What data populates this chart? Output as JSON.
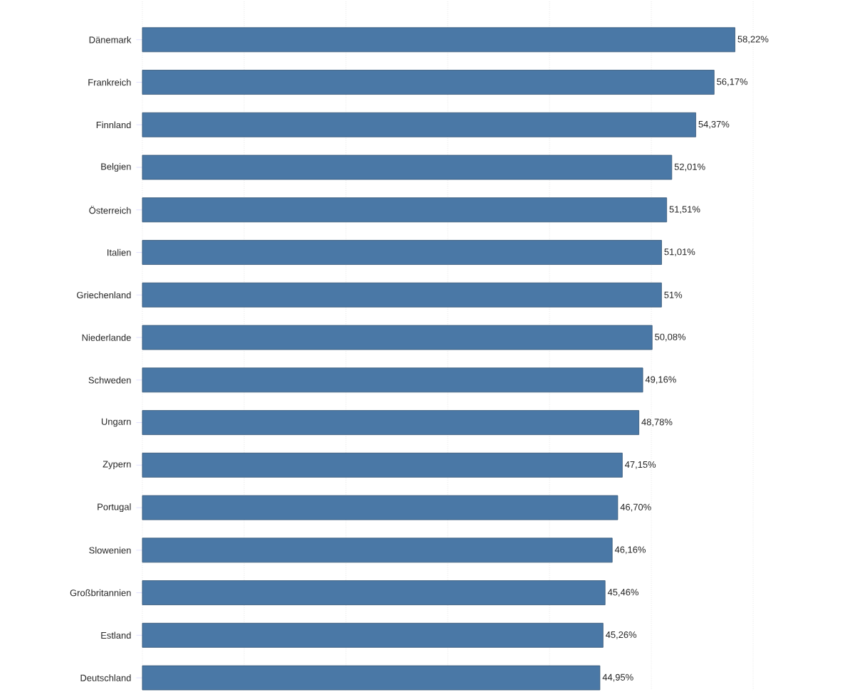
{
  "chart_data": {
    "type": "bar",
    "orientation": "horizontal",
    "categories": [
      "Dänemark",
      "Frankreich",
      "Finnland",
      "Belgien",
      "Österreich",
      "Italien",
      "Griechenland",
      "Niederlande",
      "Schweden",
      "Ungarn",
      "Zypern",
      "Portugal",
      "Slowenien",
      "Großbritannien",
      "Estland",
      "Deutschland"
    ],
    "values": [
      58.22,
      56.17,
      54.37,
      52.01,
      51.51,
      51.01,
      51,
      50.08,
      49.16,
      48.78,
      47.15,
      46.7,
      46.16,
      45.46,
      45.26,
      44.95
    ],
    "value_labels": [
      "58,22%",
      "56,17%",
      "54,37%",
      "52,01%",
      "51,51%",
      "51,01%",
      "51%",
      "50,08%",
      "49,16%",
      "48,78%",
      "47,15%",
      "46,70%",
      "46,16%",
      "45,46%",
      "45,26%",
      "44,95%"
    ],
    "color": "#4a78a6",
    "xticks": [
      {
        "value": 0,
        "label": null
      },
      {
        "value": 10,
        "label": null
      },
      {
        "value": 20,
        "label": null
      },
      {
        "value": 30,
        "label": null
      },
      {
        "value": 40,
        "label": null
      },
      {
        "value": 50,
        "label": null
      },
      {
        "value": 60,
        "label": null
      }
    ],
    "grid": "x",
    "tick_labels": "y"
  }
}
